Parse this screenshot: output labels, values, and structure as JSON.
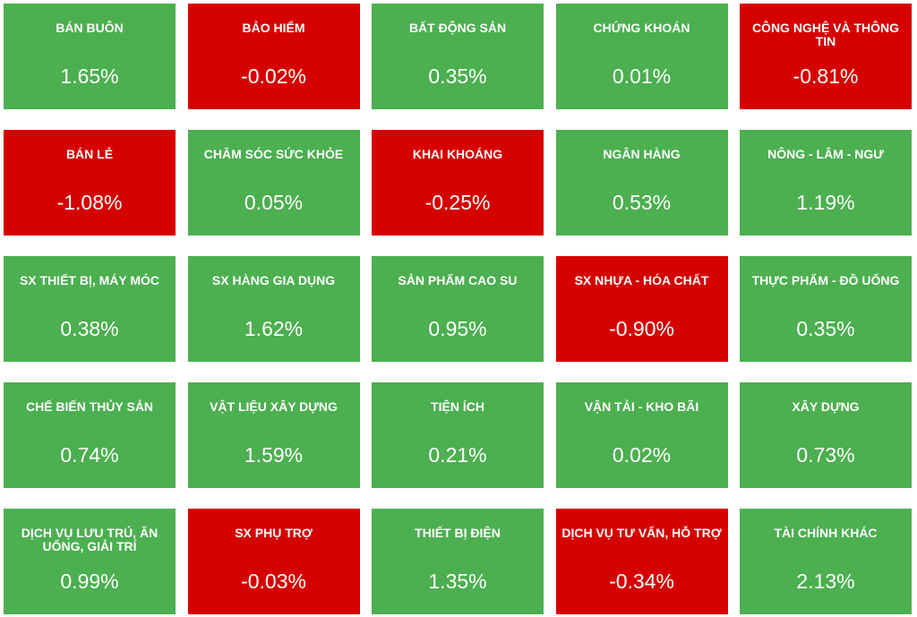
{
  "colors": {
    "up": "#4caf50",
    "down": "#d50000",
    "text": "#ffffff"
  },
  "sectors": [
    {
      "name": "BÁN BUÔN",
      "change": "1.65%",
      "trend": "up"
    },
    {
      "name": "BẢO HIỂM",
      "change": "-0.02%",
      "trend": "down"
    },
    {
      "name": "BẤT ĐỘNG SẢN",
      "change": "0.35%",
      "trend": "up"
    },
    {
      "name": "CHỨNG KHOÁN",
      "change": "0.01%",
      "trend": "up"
    },
    {
      "name": "CÔNG NGHỆ VÀ THÔNG TIN",
      "change": "-0.81%",
      "trend": "down"
    },
    {
      "name": "BÁN LẺ",
      "change": "-1.08%",
      "trend": "down"
    },
    {
      "name": "CHĂM SÓC SỨC KHỎE",
      "change": "0.05%",
      "trend": "up"
    },
    {
      "name": "KHAI KHOÁNG",
      "change": "-0.25%",
      "trend": "down"
    },
    {
      "name": "NGÂN HÀNG",
      "change": "0.53%",
      "trend": "up"
    },
    {
      "name": "NÔNG - LÂM - NGƯ",
      "change": "1.19%",
      "trend": "up"
    },
    {
      "name": "SX THIẾT BỊ, MÁY MÓC",
      "change": "0.38%",
      "trend": "up"
    },
    {
      "name": "SX HÀNG GIA DỤNG",
      "change": "1.62%",
      "trend": "up"
    },
    {
      "name": "SẢN PHẨM CAO SU",
      "change": "0.95%",
      "trend": "up"
    },
    {
      "name": "SX NHỰA - HÓA CHẤT",
      "change": "-0.90%",
      "trend": "down"
    },
    {
      "name": "THỰC PHẨM - ĐỒ UỐNG",
      "change": "0.35%",
      "trend": "up"
    },
    {
      "name": "CHẾ BIẾN THỦY SẢN",
      "change": "0.74%",
      "trend": "up"
    },
    {
      "name": "VẬT LIỆU XÂY DỰNG",
      "change": "1.59%",
      "trend": "up"
    },
    {
      "name": "TIỆN ÍCH",
      "change": "0.21%",
      "trend": "up"
    },
    {
      "name": "VẬN TẢI - KHO BÃI",
      "change": "0.02%",
      "trend": "up"
    },
    {
      "name": "XÂY DỰNG",
      "change": "0.73%",
      "trend": "up"
    },
    {
      "name": "DỊCH VỤ LƯU TRÚ, ĂN UỐNG, GIẢI TRÍ",
      "change": "0.99%",
      "trend": "up"
    },
    {
      "name": "SX PHỤ TRỢ",
      "change": "-0.03%",
      "trend": "down"
    },
    {
      "name": "THIẾT BỊ ĐIỆN",
      "change": "1.35%",
      "trend": "up"
    },
    {
      "name": "DỊCH VỤ TƯ VẤN, HỖ TRỢ",
      "change": "-0.34%",
      "trend": "down"
    },
    {
      "name": "TÀI CHÍNH KHÁC",
      "change": "2.13%",
      "trend": "up"
    }
  ]
}
